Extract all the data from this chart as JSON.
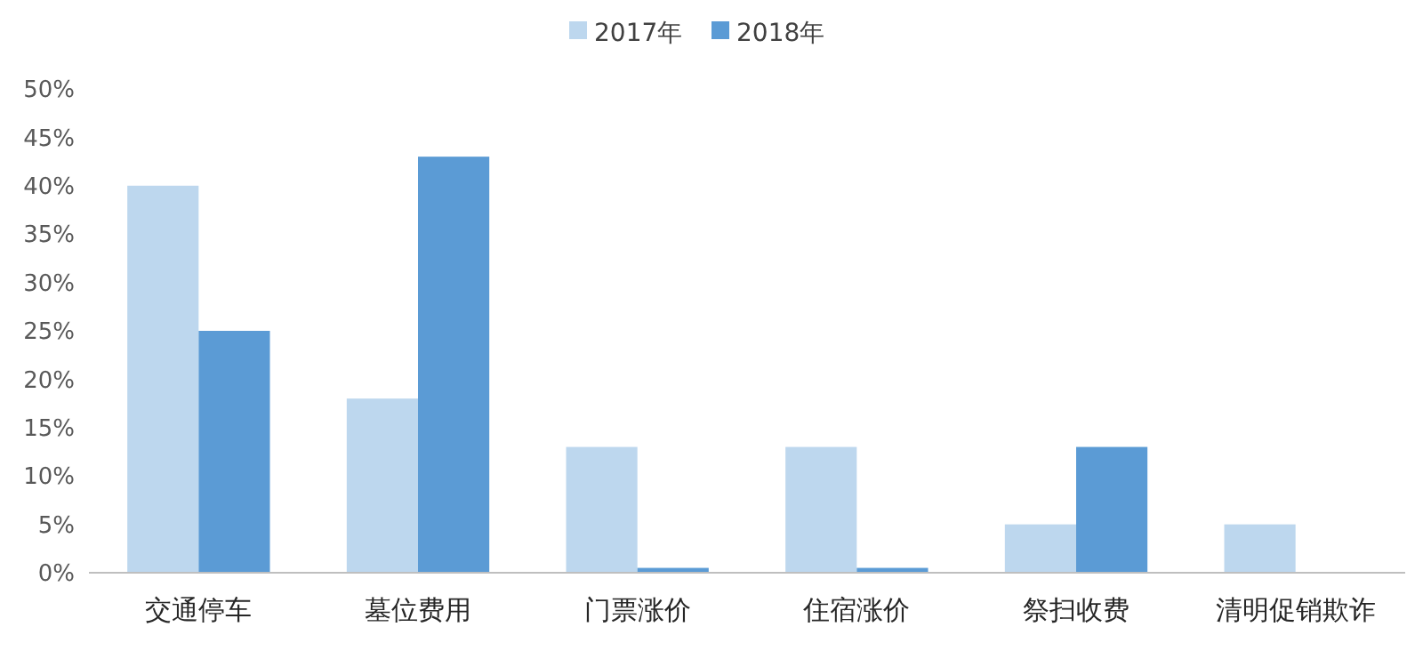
{
  "chart_data": {
    "type": "bar",
    "categories": [
      "交通停车",
      "墓位费用",
      "门票涨价",
      "住宿涨价",
      "祭扫收费",
      "清明促销欺诈"
    ],
    "series": [
      {
        "name": "2017年",
        "color": "#bdd7ee",
        "values": [
          40,
          18,
          13,
          13,
          5,
          5
        ]
      },
      {
        "name": "2018年",
        "color": "#5b9bd5",
        "values": [
          25,
          43,
          0.5,
          0.5,
          13,
          0
        ]
      }
    ],
    "ylim": [
      0,
      50
    ],
    "yticks": [
      {
        "value": 0,
        "label": "0%"
      },
      {
        "value": 5,
        "label": "5%"
      },
      {
        "value": 10,
        "label": "10%"
      },
      {
        "value": 15,
        "label": "15%"
      },
      {
        "value": 20,
        "label": "20%"
      },
      {
        "value": 25,
        "label": "25%"
      },
      {
        "value": 30,
        "label": "30%"
      },
      {
        "value": 35,
        "label": "35%"
      },
      {
        "value": 40,
        "label": "40%"
      },
      {
        "value": 45,
        "label": "45%"
      },
      {
        "value": 50,
        "label": "50%"
      }
    ],
    "grid": false,
    "legend": "top"
  }
}
